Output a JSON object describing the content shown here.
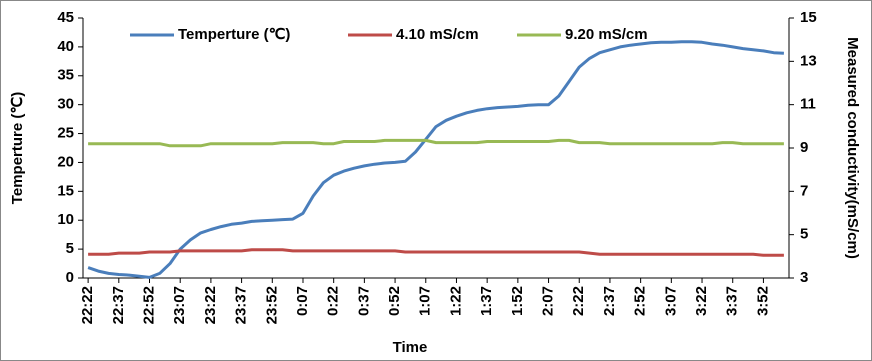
{
  "chart_data": {
    "type": "line",
    "x_label": "Time",
    "y_label": "Temperture (℃)",
    "y2_label": "Measured conductivity(mS/cm)",
    "categories": [
      "22:22",
      null,
      null,
      "22:37",
      null,
      null,
      "22:52",
      null,
      null,
      "23:07",
      null,
      null,
      "23:22",
      null,
      null,
      "23:37",
      null,
      null,
      "23:52",
      null,
      null,
      "0:07",
      null,
      null,
      "0:22",
      null,
      null,
      "0:37",
      null,
      null,
      "0:52",
      null,
      null,
      "1:07",
      null,
      null,
      "1:22",
      null,
      null,
      "1:37",
      null,
      null,
      "1:52",
      null,
      null,
      "2:07",
      null,
      null,
      "2:22",
      null,
      null,
      "2:37",
      null,
      null,
      "2:52",
      null,
      null,
      "3:07",
      null,
      null,
      "3:22",
      null,
      null,
      "3:37",
      null,
      null,
      "3:52",
      null,
      null
    ],
    "series": [
      {
        "name": "Temperture (℃)",
        "color": "#4a7ebb",
        "axis": "y",
        "values": [
          1.8,
          1.2,
          0.8,
          0.6,
          0.5,
          0.3,
          0.1,
          0.8,
          2.5,
          5,
          6.6,
          7.8,
          8.4,
          8.9,
          9.3,
          9.5,
          9.8,
          9.9,
          10,
          10.1,
          10.2,
          11.2,
          14.2,
          16.5,
          17.8,
          18.5,
          19,
          19.4,
          19.7,
          19.9,
          20,
          20.2,
          21.8,
          24,
          26.2,
          27.3,
          28,
          28.6,
          29,
          29.3,
          29.5,
          29.6,
          29.7,
          29.9,
          30,
          30,
          31.5,
          34,
          36.5,
          38,
          39,
          39.5,
          40,
          40.3,
          40.5,
          40.7,
          40.8,
          40.8,
          40.9,
          40.9,
          40.8,
          40.5,
          40.3,
          40,
          39.7,
          39.5,
          39.3,
          39,
          38.9
        ]
      },
      {
        "name": "4.10 mS/cm",
        "color": "#be4b48",
        "axis": "y2",
        "values": [
          4.1,
          4.1,
          4.1,
          4.15,
          4.15,
          4.15,
          4.2,
          4.2,
          4.2,
          4.25,
          4.25,
          4.25,
          4.25,
          4.25,
          4.25,
          4.25,
          4.3,
          4.3,
          4.3,
          4.3,
          4.25,
          4.25,
          4.25,
          4.25,
          4.25,
          4.25,
          4.25,
          4.25,
          4.25,
          4.25,
          4.25,
          4.2,
          4.2,
          4.2,
          4.2,
          4.2,
          4.2,
          4.2,
          4.2,
          4.2,
          4.2,
          4.2,
          4.2,
          4.2,
          4.2,
          4.2,
          4.2,
          4.2,
          4.2,
          4.15,
          4.1,
          4.1,
          4.1,
          4.1,
          4.1,
          4.1,
          4.1,
          4.1,
          4.1,
          4.1,
          4.1,
          4.1,
          4.1,
          4.1,
          4.1,
          4.1,
          4.05,
          4.05,
          4.05
        ]
      },
      {
        "name": "9.20 mS/cm",
        "color": "#98b954",
        "axis": "y2",
        "values": [
          9.2,
          9.2,
          9.2,
          9.2,
          9.2,
          9.2,
          9.2,
          9.2,
          9.1,
          9.1,
          9.1,
          9.1,
          9.2,
          9.2,
          9.2,
          9.2,
          9.2,
          9.2,
          9.2,
          9.25,
          9.25,
          9.25,
          9.25,
          9.2,
          9.2,
          9.3,
          9.3,
          9.3,
          9.3,
          9.35,
          9.35,
          9.35,
          9.35,
          9.35,
          9.25,
          9.25,
          9.25,
          9.25,
          9.25,
          9.3,
          9.3,
          9.3,
          9.3,
          9.3,
          9.3,
          9.3,
          9.35,
          9.35,
          9.25,
          9.25,
          9.25,
          9.2,
          9.2,
          9.2,
          9.2,
          9.2,
          9.2,
          9.2,
          9.2,
          9.2,
          9.2,
          9.2,
          9.25,
          9.25,
          9.2,
          9.2,
          9.2,
          9.2,
          9.2
        ]
      }
    ],
    "ylim": [
      0,
      45
    ],
    "yticks": [
      0,
      5,
      10,
      15,
      20,
      25,
      30,
      35,
      40,
      45
    ],
    "y2lim": [
      3,
      15
    ],
    "y2ticks": [
      3,
      5,
      7,
      9,
      11,
      13,
      15
    ],
    "grid": false,
    "legend": "top"
  }
}
